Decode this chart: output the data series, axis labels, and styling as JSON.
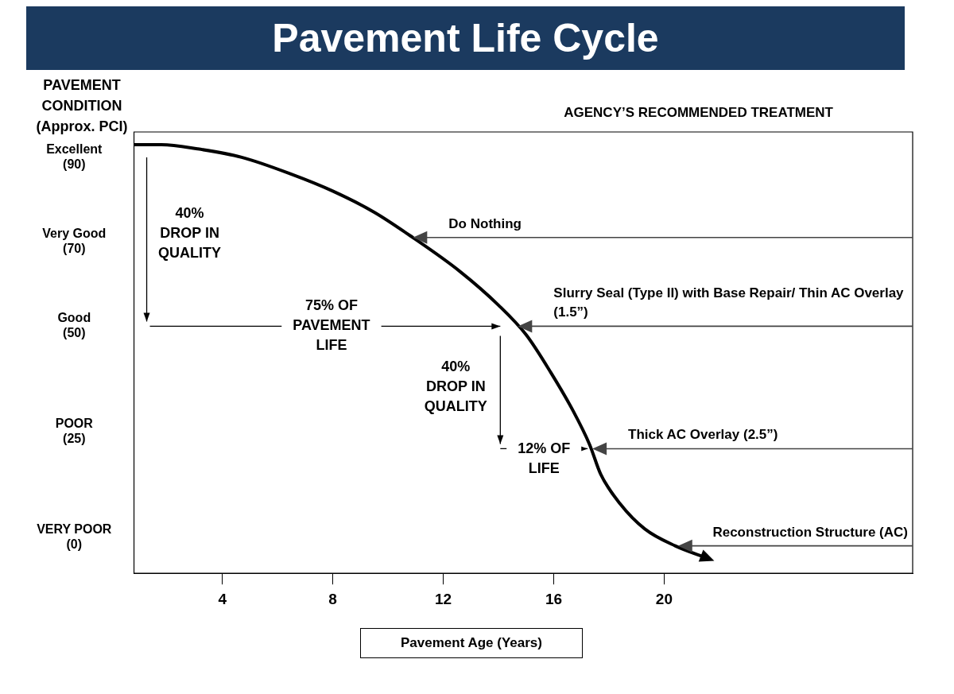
{
  "chart_data": {
    "type": "line",
    "title": "Pavement Life Cycle",
    "subtitle": "AGENCY’S RECOMMENDED TREATMENT",
    "ylabel": "PAVEMENT CONDITION (Approx. PCI)",
    "xlabel": "Pavement Age (Years)",
    "x": [
      0.8,
      1.8,
      3.1,
      4.7,
      6.5,
      8.0,
      9.5,
      10.9,
      12.6,
      14.0,
      15.0,
      15.9,
      16.7,
      17.3,
      17.7,
      18.4,
      19.3,
      20.4,
      21.6
    ],
    "series": [
      {
        "color": "#000000",
        "values": [
          93,
          93,
          92,
          90,
          86,
          82,
          77,
          71,
          63,
          55,
          48,
          39,
          30,
          22,
          15,
          8,
          2,
          -2,
          -5
        ]
      }
    ],
    "xlim": [
      0.8,
      29
    ],
    "xticks": [
      4,
      8,
      12,
      16,
      20
    ],
    "ylim": [
      -8.5,
      96
    ],
    "yticks": [
      {
        "value": 90,
        "label": "Excellent (90)"
      },
      {
        "value": 70,
        "label": "Very Good (70)"
      },
      {
        "value": 50,
        "label": "Good (50)"
      },
      {
        "value": 25,
        "label": "POOR (25)"
      },
      {
        "value": 0,
        "label": "VERY POOR (0)"
      }
    ],
    "marker": "none",
    "line_style": "solid",
    "annotations": [
      {
        "text": "Do Nothing",
        "x": 10.9,
        "y": 71
      },
      {
        "text": "Slurry Seal (Type II) with Base Repair/ Thin AC Overlay (1.5”)",
        "x": 14.7,
        "y": 50
      },
      {
        "text": "Thick AC Overlay (2.5”)",
        "x": 17.4,
        "y": 21
      },
      {
        "text": "Reconstruction Structure (AC)",
        "x": 20.5,
        "y": -2
      },
      "40% DROP IN QUALITY",
      "75% OF PAVEMENT LIFE",
      "40% DROP IN QUALITY",
      "12% OF LIFE"
    ]
  }
}
